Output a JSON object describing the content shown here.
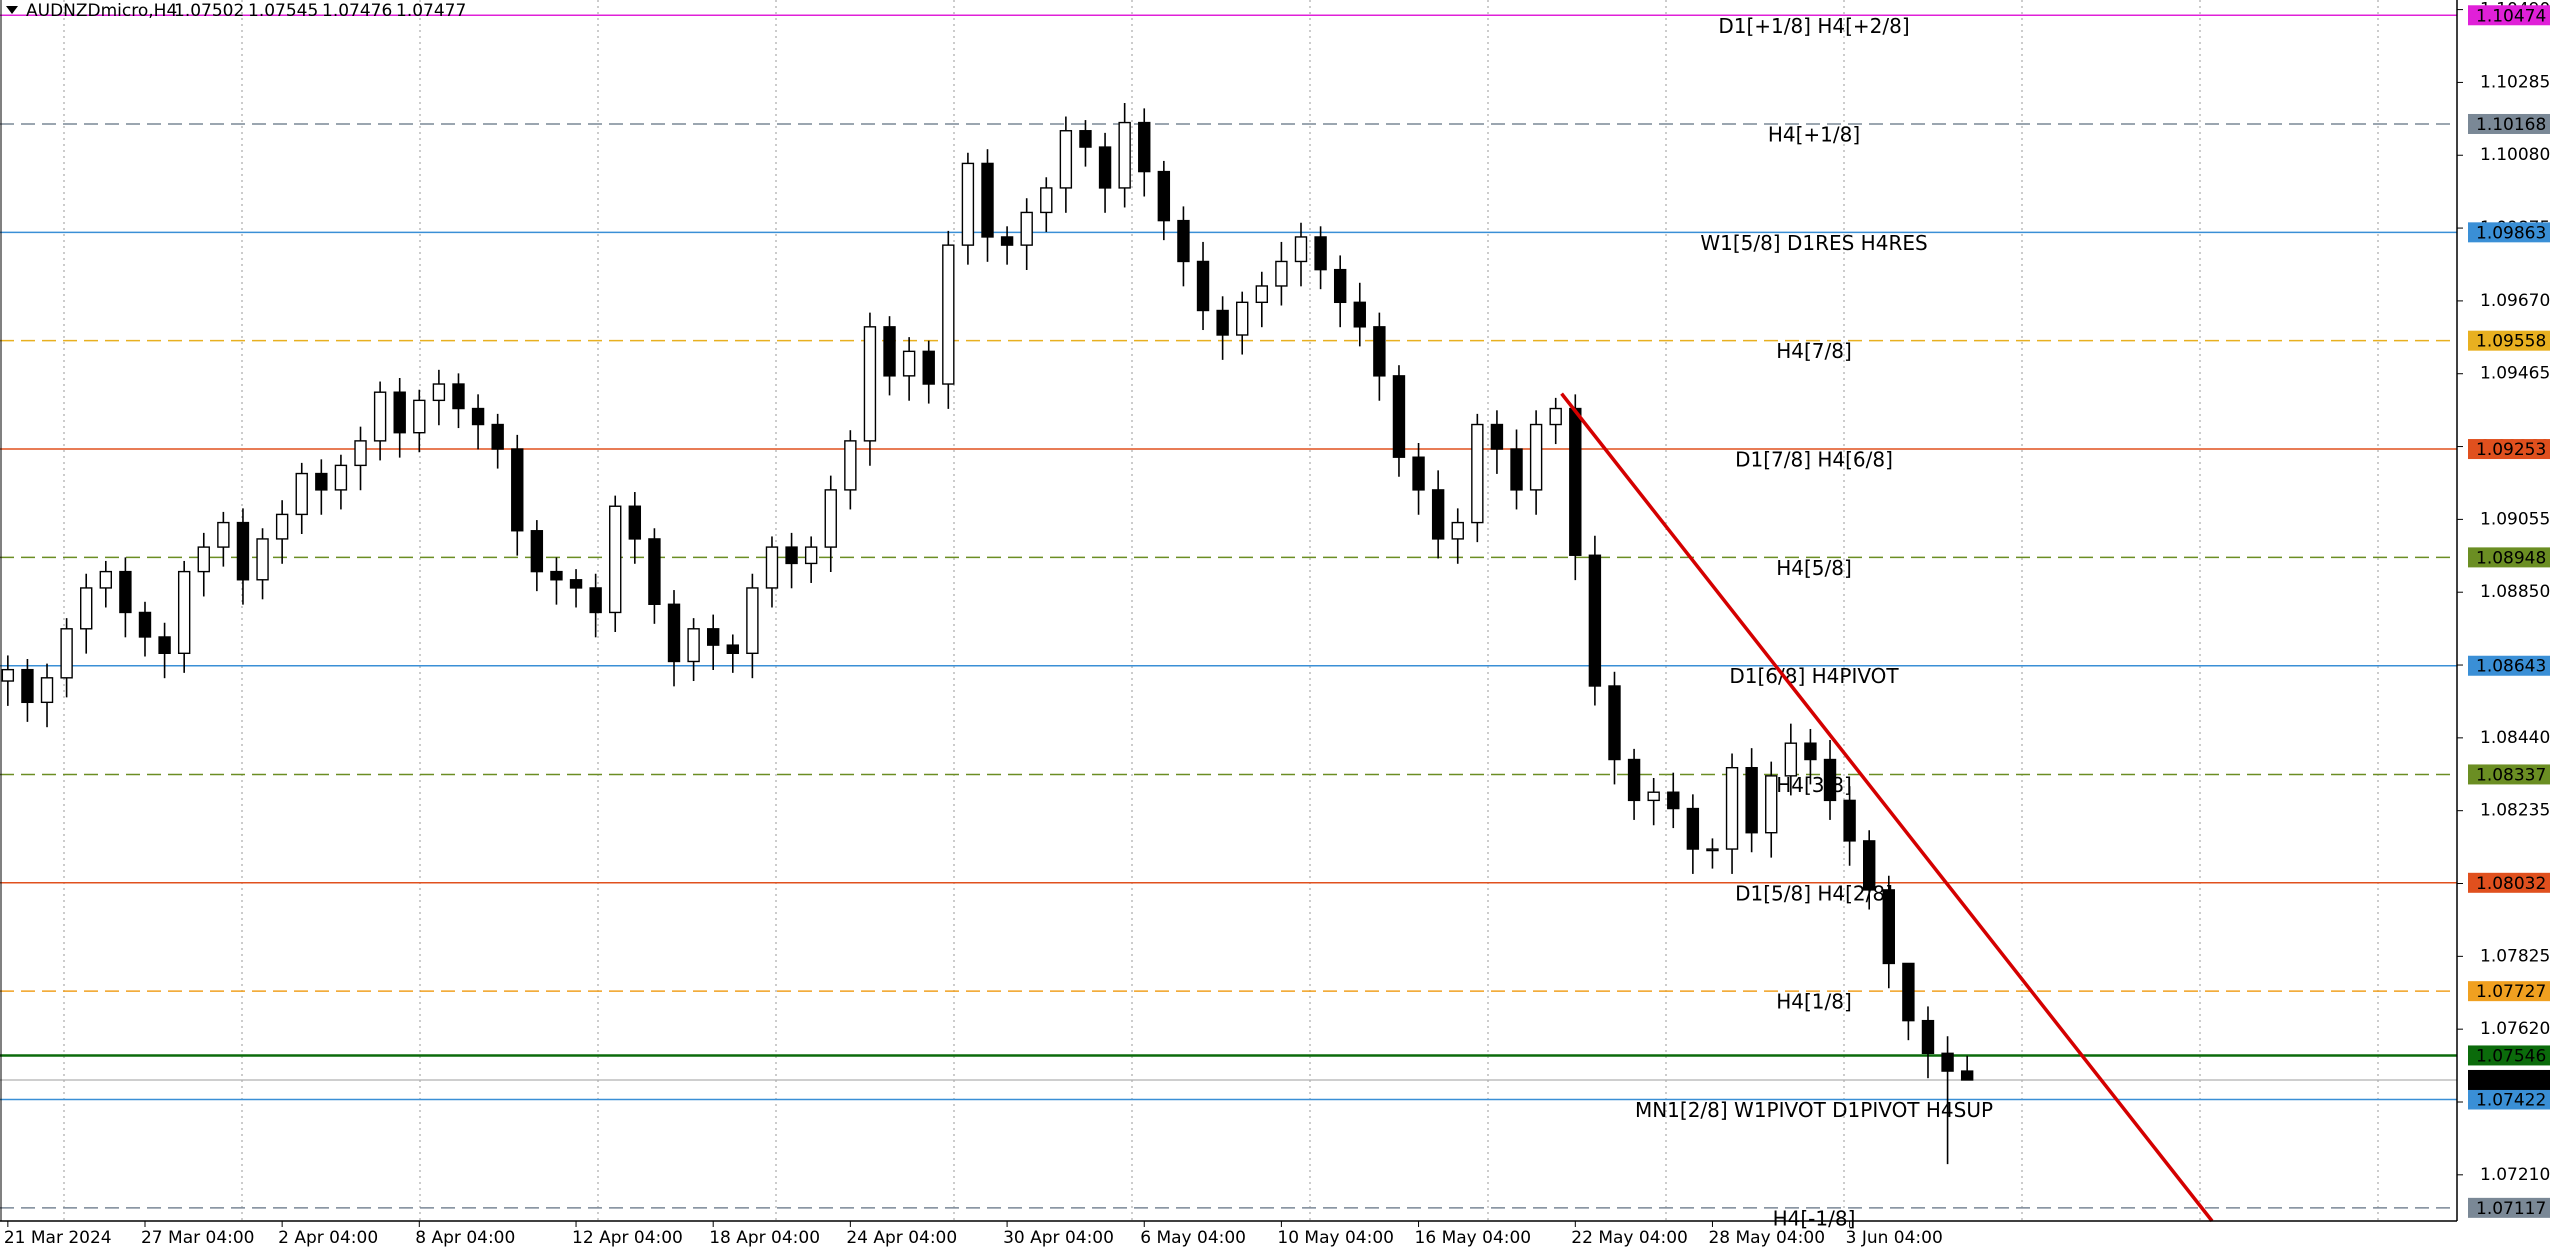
{
  "chart_data": {
    "type": "candlestick",
    "symbol": "AUDNZDmicro,H4",
    "ohlc": [
      1.07502,
      1.07545,
      1.07476,
      1.07477
    ],
    "up_color": "#ffffff",
    "down_color": "#000000",
    "grid": true,
    "xlim": [
      -0.4,
      125
    ],
    "ylim": [
      1.0708,
      1.10517
    ],
    "candles": {
      "open": [
        1.086,
        1.08632,
        1.0854,
        1.08609,
        1.08747,
        1.08862,
        1.08908,
        1.08793,
        1.08724,
        1.08678,
        1.08908,
        1.08977,
        1.09046,
        1.08885,
        1.09,
        1.09069,
        1.09184,
        1.09138,
        1.09207,
        1.09276,
        1.09413,
        1.09299,
        1.0939,
        1.09436,
        1.09367,
        1.09322,
        1.09253,
        1.09023,
        1.08908,
        1.08885,
        1.08862,
        1.08793,
        1.09092,
        1.09,
        1.08816,
        1.08655,
        1.08747,
        1.08701,
        1.08678,
        1.08862,
        1.08977,
        1.08931,
        1.08977,
        1.09138,
        1.09276,
        1.09597,
        1.09459,
        1.09528,
        1.09436,
        1.09827,
        1.10057,
        1.0985,
        1.09827,
        1.09919,
        1.09988,
        1.10149,
        1.10103,
        1.09988,
        1.10172,
        1.10034,
        1.09896,
        1.09781,
        1.09643,
        1.09574,
        1.09666,
        1.09712,
        1.09781,
        1.0985,
        1.09758,
        1.09666,
        1.09597,
        1.09459,
        1.0923,
        1.09138,
        1.09,
        1.09046,
        1.09322,
        1.09253,
        1.09138,
        1.09322,
        1.09367,
        1.08954,
        1.08586,
        1.08379,
        1.08264,
        1.08287,
        1.08241,
        1.08127,
        1.08127,
        1.08356,
        1.08173,
        1.08333,
        1.08425,
        1.08379,
        1.08264,
        1.0815,
        1.08012,
        1.07805,
        1.07644,
        1.07552,
        1.07502
      ],
      "high": [
        1.08672,
        1.08662,
        1.08649,
        1.08777,
        1.08902,
        1.08938,
        1.08948,
        1.08823,
        1.08764,
        1.08938,
        1.09017,
        1.09076,
        1.09086,
        1.0903,
        1.09109,
        1.09214,
        1.09224,
        1.09237,
        1.09316,
        1.09443,
        1.09453,
        1.0942,
        1.09476,
        1.09466,
        1.09407,
        1.09352,
        1.09293,
        1.09053,
        1.08948,
        1.08915,
        1.08902,
        1.09122,
        1.09132,
        1.0903,
        1.08856,
        1.08777,
        1.08787,
        1.08731,
        1.08902,
        1.09007,
        1.09017,
        1.09007,
        1.09178,
        1.09306,
        1.09637,
        1.09627,
        1.09568,
        1.09558,
        1.09867,
        1.10087,
        1.10097,
        1.0988,
        1.09959,
        1.10018,
        1.10189,
        1.10179,
        1.10143,
        1.10227,
        1.10212,
        1.10064,
        1.09936,
        1.09836,
        1.09683,
        1.09696,
        1.09752,
        1.09836,
        1.0989,
        1.0988,
        1.09798,
        1.09721,
        1.09637,
        1.09489,
        1.0927,
        1.09193,
        1.09086,
        1.09352,
        1.09362,
        1.09308,
        1.09362,
        1.09397,
        1.09407,
        1.09009,
        1.08626,
        1.08409,
        1.08327,
        1.08342,
        1.08281,
        1.08157,
        1.08396,
        1.08411,
        1.08373,
        1.0848,
        1.08465,
        1.08434,
        1.08304,
        1.0818,
        1.08052,
        1.077,
        1.07684,
        1.076,
        1.07545
      ],
      "low": [
        1.0853,
        1.08485,
        1.0847,
        1.08554,
        1.08677,
        1.08807,
        1.08723,
        1.08669,
        1.08608,
        1.08623,
        1.08838,
        1.08922,
        1.08815,
        1.0883,
        1.0893,
        1.09014,
        1.09068,
        1.09083,
        1.09137,
        1.09221,
        1.09229,
        1.09244,
        1.0932,
        1.09312,
        1.09252,
        1.09198,
        1.08953,
        1.08853,
        1.08815,
        1.08807,
        1.08723,
        1.08738,
        1.0893,
        1.08761,
        1.08585,
        1.086,
        1.08631,
        1.08623,
        1.08608,
        1.08807,
        1.08861,
        1.08876,
        1.08907,
        1.09083,
        1.09206,
        1.09404,
        1.09389,
        1.09381,
        1.09366,
        1.09772,
        1.0978,
        1.09772,
        1.09757,
        1.09864,
        1.09918,
        1.10048,
        1.09918,
        1.09933,
        1.09964,
        1.09841,
        1.09711,
        1.09588,
        1.09504,
        1.09519,
        1.09596,
        1.09657,
        1.09711,
        1.09703,
        1.09596,
        1.09542,
        1.09389,
        1.09175,
        1.09068,
        1.08945,
        1.0893,
        1.08991,
        1.09183,
        1.09083,
        1.09068,
        1.09267,
        1.08884,
        1.08531,
        1.08309,
        1.08209,
        1.08194,
        1.08186,
        1.08057,
        1.08072,
        1.08057,
        1.08118,
        1.08103,
        1.08278,
        1.08309,
        1.08209,
        1.0808,
        1.07957,
        1.07735,
        1.07589,
        1.07482,
        1.0724,
        1.07476
      ],
      "close": [
        1.08632,
        1.0854,
        1.08609,
        1.08747,
        1.08862,
        1.08908,
        1.08793,
        1.08724,
        1.08678,
        1.08908,
        1.08977,
        1.09046,
        1.08885,
        1.09,
        1.09069,
        1.09184,
        1.09138,
        1.09207,
        1.09276,
        1.09413,
        1.09299,
        1.0939,
        1.09436,
        1.09367,
        1.09322,
        1.09253,
        1.09023,
        1.08908,
        1.08885,
        1.08862,
        1.08793,
        1.09092,
        1.09,
        1.08816,
        1.08655,
        1.08747,
        1.08701,
        1.08678,
        1.08862,
        1.08977,
        1.08931,
        1.08977,
        1.09138,
        1.09276,
        1.09597,
        1.09459,
        1.09528,
        1.09436,
        1.09827,
        1.10057,
        1.0985,
        1.09827,
        1.09919,
        1.09988,
        1.10149,
        1.10103,
        1.09988,
        1.10172,
        1.10034,
        1.09896,
        1.09781,
        1.09643,
        1.09574,
        1.09666,
        1.09712,
        1.09781,
        1.0985,
        1.09758,
        1.09666,
        1.09597,
        1.09459,
        1.0923,
        1.09138,
        1.09,
        1.09046,
        1.09322,
        1.09253,
        1.09138,
        1.09322,
        1.09367,
        1.08954,
        1.08586,
        1.08379,
        1.08264,
        1.08287,
        1.08241,
        1.08127,
        1.08127,
        1.08356,
        1.08173,
        1.08333,
        1.08425,
        1.08379,
        1.08264,
        1.0815,
        1.08012,
        1.07805,
        1.07644,
        1.07552,
        1.07502,
        1.07477
      ]
    },
    "xticks": [
      {
        "value": 0,
        "label": "21 Mar 2024"
      },
      {
        "value": 7,
        "label": "27 Mar 04:00"
      },
      {
        "value": 14,
        "label": "2 Apr 04:00"
      },
      {
        "value": 21,
        "label": "8 Apr 04:00"
      },
      {
        "value": 29,
        "label": "12 Apr 04:00"
      },
      {
        "value": 36,
        "label": "18 Apr 04:00"
      },
      {
        "value": 43,
        "label": "24 Apr 04:00"
      },
      {
        "value": 51,
        "label": "30 Apr 04:00"
      },
      {
        "value": 58,
        "label": "6 May 04:00"
      },
      {
        "value": 65,
        "label": "10 May 04:00"
      },
      {
        "value": 72,
        "label": "16 May 04:00"
      },
      {
        "value": 80,
        "label": "22 May 04:00"
      },
      {
        "value": 87,
        "label": "28 May 04:00"
      },
      {
        "value": 94,
        "label": "3 Jun 04:00"
      }
    ],
    "yticks": [
      {
        "value": 1.1049,
        "label": "1.10490"
      },
      1.10285,
      {
        "value": 1.1008,
        "label": "1.10080"
      },
      1.09875,
      {
        "value": 1.0967,
        "label": "1.09670"
      },
      1.09465,
      {
        "value": 1.0926,
        "label": "1.09260"
      },
      1.09055,
      {
        "value": 1.0885,
        "label": "1.08850"
      },
      1.08645,
      {
        "value": 1.0844,
        "label": "1.08440"
      },
      1.08235,
      {
        "value": 1.0803,
        "label": "1.08030"
      },
      1.07825,
      {
        "value": 1.0762,
        "label": "1.07620"
      },
      1.07415,
      {
        "value": 1.0721,
        "label": "1.07210"
      }
    ],
    "levels": [
      {
        "value": 1.10474,
        "label": "D1[+1/8] H4[+2/8]",
        "color": "#e020d8",
        "style": "solid"
      },
      {
        "value": 1.10168,
        "label": "H4[+1/8]",
        "color": "#7a8896",
        "style": "dashed"
      },
      {
        "value": 1.09863,
        "label": "W1[5/8] D1RES H4RES",
        "color": "#3a8fd6",
        "style": "solid"
      },
      {
        "value": 1.09558,
        "label": "H4[7/8]",
        "color": "#e8b020",
        "style": "dashed"
      },
      {
        "value": 1.09253,
        "label": "D1[7/8] H4[6/8]",
        "color": "#e0501e",
        "style": "solid"
      },
      {
        "value": 1.08948,
        "label": "H4[5/8]",
        "color": "#6b8e23",
        "style": "dashed"
      },
      {
        "value": 1.08643,
        "label": "D1[6/8] H4PIVOT",
        "color": "#3a8fd6",
        "style": "solid"
      },
      {
        "value": 1.08337,
        "label": "H4[3/8]",
        "color": "#6b8e23",
        "style": "dashed"
      },
      {
        "value": 1.08032,
        "label": "D1[5/8] H4[2/8]",
        "color": "#e0501e",
        "style": "solid"
      },
      {
        "value": 1.07727,
        "label": "H4[1/8]",
        "color": "#f0a020",
        "style": "dashed"
      },
      {
        "value": 1.07422,
        "label": "MN1[2/8] W1PIVOT D1PIVOT H4SUP",
        "color": "#3a8fd6",
        "style": "solid"
      },
      {
        "value": 1.07117,
        "label": "H4[-1/8]",
        "color": "#7a8896",
        "style": "dashed"
      }
    ],
    "price_lines": [
      {
        "value": 1.07546,
        "color": "#0b6b0b"
      },
      {
        "value": 1.07477,
        "color": "#000000"
      }
    ],
    "trendline": {
      "x": [
        79.3,
        112.5
      ],
      "y": [
        1.09409,
        1.0708
      ],
      "color": "#d40000"
    }
  }
}
